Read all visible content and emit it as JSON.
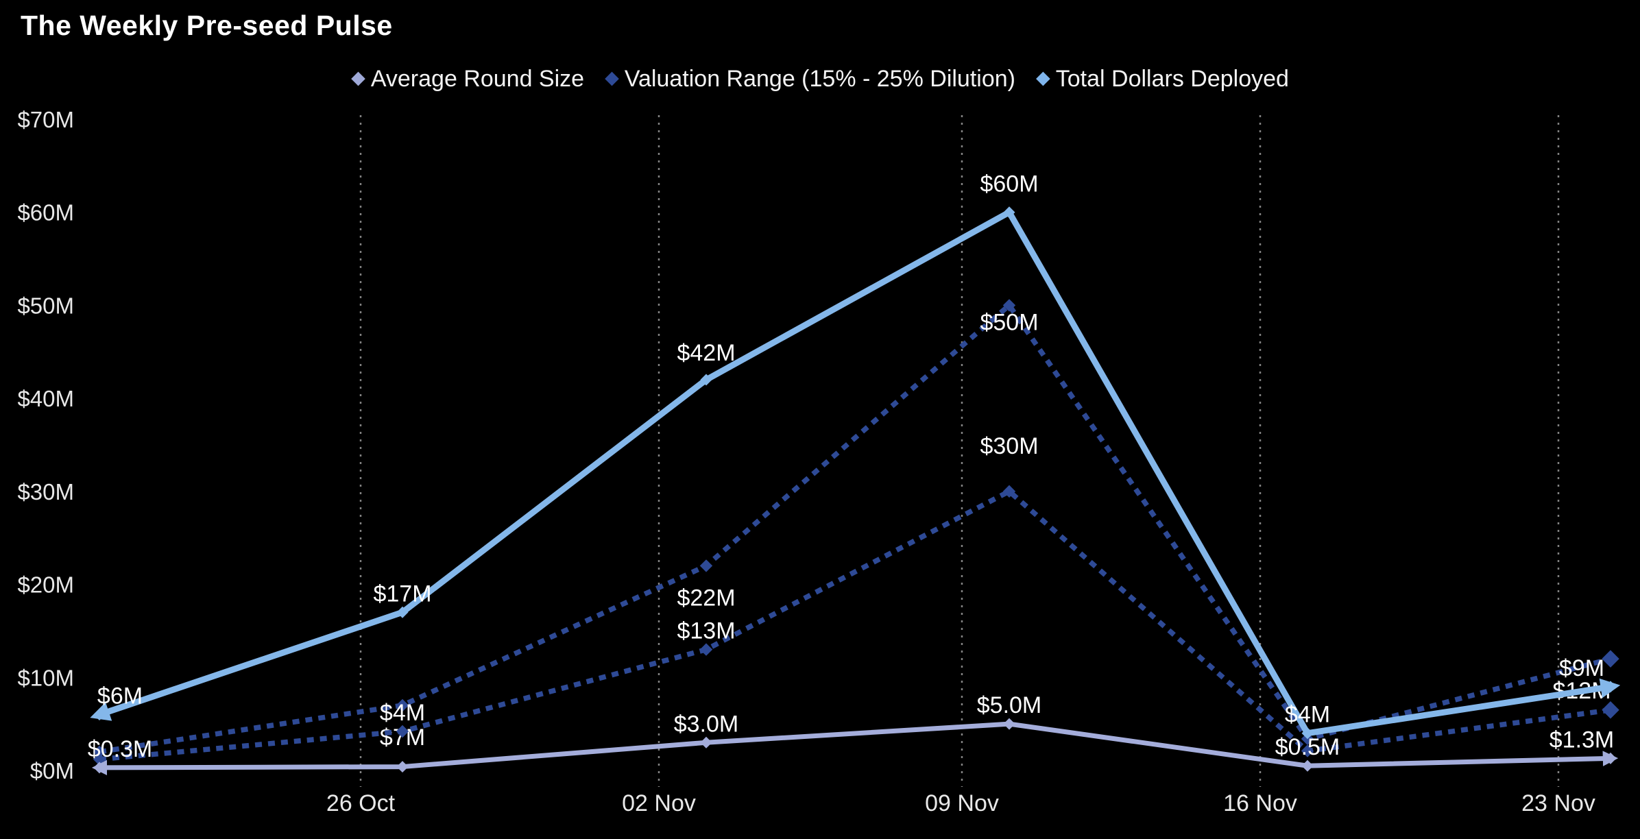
{
  "page": {
    "title": "The Weekly Pre-seed Pulse"
  },
  "colors": {
    "background": "#000000",
    "title_text": "#ffffff",
    "axis_text": "#e8e8e8",
    "data_label_text": "#ffffff",
    "gridline": "#9a9a9a",
    "total_line": "#84b7ea",
    "valuation_line": "#2e4a96",
    "round_line": "#a4addb"
  },
  "legend": {
    "items": [
      {
        "label": "Average Round Size",
        "color": "#9fa9d8",
        "marker": "diamond-icon"
      },
      {
        "label": "Valuation Range (15% - 25% Dilution)",
        "color": "#2e4a96",
        "marker": "diamond-icon"
      },
      {
        "label": "Total Dollars Deployed",
        "color": "#7fb5ec",
        "marker": "diamond-icon"
      }
    ]
  },
  "chart_data": {
    "type": "line",
    "title": "The Weekly Pre-seed Pulse",
    "xlabel": "",
    "ylabel": "",
    "ylim": [
      0,
      70
    ],
    "grid": "vertical-dotted",
    "legend_position": "top-center",
    "x_tick_labels": [
      "26 Oct",
      "02 Nov",
      "09 Nov",
      "16 Nov",
      "23 Nov"
    ],
    "y_tick_labels": [
      "$70M",
      "$60M",
      "$50M",
      "$40M",
      "$30M",
      "$20M",
      "$10M",
      "$0M"
    ],
    "y_tick_values": [
      70,
      60,
      50,
      40,
      30,
      20,
      10,
      0
    ],
    "note": "Six weekly data points; first point precedes the 26 Oct tick and has no x label. Unlabeled point values are estimated from the axis scale.",
    "series": [
      {
        "name": "Valuation Range upper (15% Dilution)",
        "legend_group": "Valuation Range (15% - 25% Dilution)",
        "color": "#2e4a96",
        "line_style": "dashed",
        "label_pos": "below",
        "values": [
          2,
          7,
          22,
          50,
          3.4,
          12
        ],
        "labels": [
          null,
          "$7M",
          "$22M",
          "$50M",
          null,
          "$12M"
        ]
      },
      {
        "name": "Valuation Range lower (25% Dilution)",
        "legend_group": "Valuation Range (15% - 25% Dilution)",
        "color": "#2e4a96",
        "line_style": "dashed",
        "label_pos": "above",
        "values": [
          1.2,
          4.2,
          13,
          30,
          2.1,
          6.5
        ],
        "labels": [
          null,
          "$4M",
          "$13M",
          "$30M",
          null,
          null
        ]
      },
      {
        "name": "Total Dollars Deployed",
        "legend_group": "Total Dollars Deployed",
        "color": "#84b7ea",
        "line_style": "solid",
        "label_pos": "above",
        "values": [
          6,
          17,
          42,
          60,
          4,
          9
        ],
        "labels": [
          "$6M",
          "$17M",
          "$42M",
          "$60M",
          "$4M",
          "$9M"
        ]
      },
      {
        "name": "Average Round Size",
        "legend_group": "Average Round Size",
        "color": "#a4addb",
        "line_style": "solid",
        "label_pos": "above",
        "values": [
          0.3,
          0.4,
          3.0,
          5.0,
          0.5,
          1.3
        ],
        "labels": [
          "$0.3M",
          null,
          "$3.0M",
          "$5.0M",
          "$0.5M",
          "$1.3M"
        ]
      }
    ]
  }
}
